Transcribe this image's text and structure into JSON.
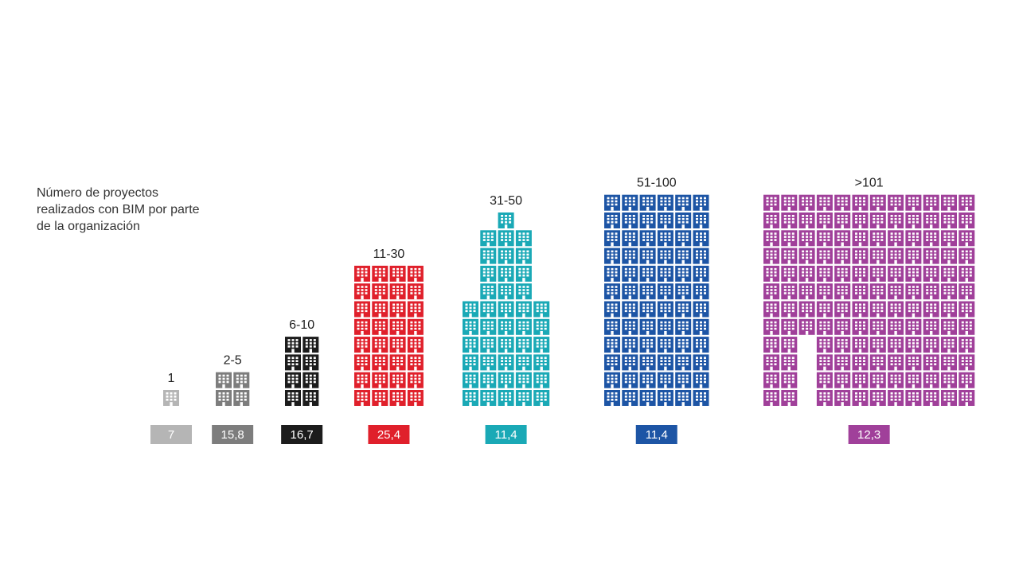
{
  "chart_data": {
    "type": "pictogram",
    "title": "Número de proyectos\nrealizados con BIM por parte\nde la organización",
    "icon": "building-icon",
    "series": [
      {
        "category": "1",
        "value": "7",
        "color": "#b5b5b5"
      },
      {
        "category": "2-5",
        "value": "15,8",
        "color": "#7d7d7d"
      },
      {
        "category": "6-10",
        "value": "16,7",
        "color": "#1c1c1c"
      },
      {
        "category": "11-30",
        "value": "25,4",
        "color": "#e0202b"
      },
      {
        "category": "31-50",
        "value": "11,4",
        "color": "#1aa9b6"
      },
      {
        "category": "51-100",
        "value": "11,4",
        "color": "#1d55a5"
      },
      {
        "category": ">101",
        "value": "12,3",
        "color": "#a0409a"
      }
    ]
  }
}
